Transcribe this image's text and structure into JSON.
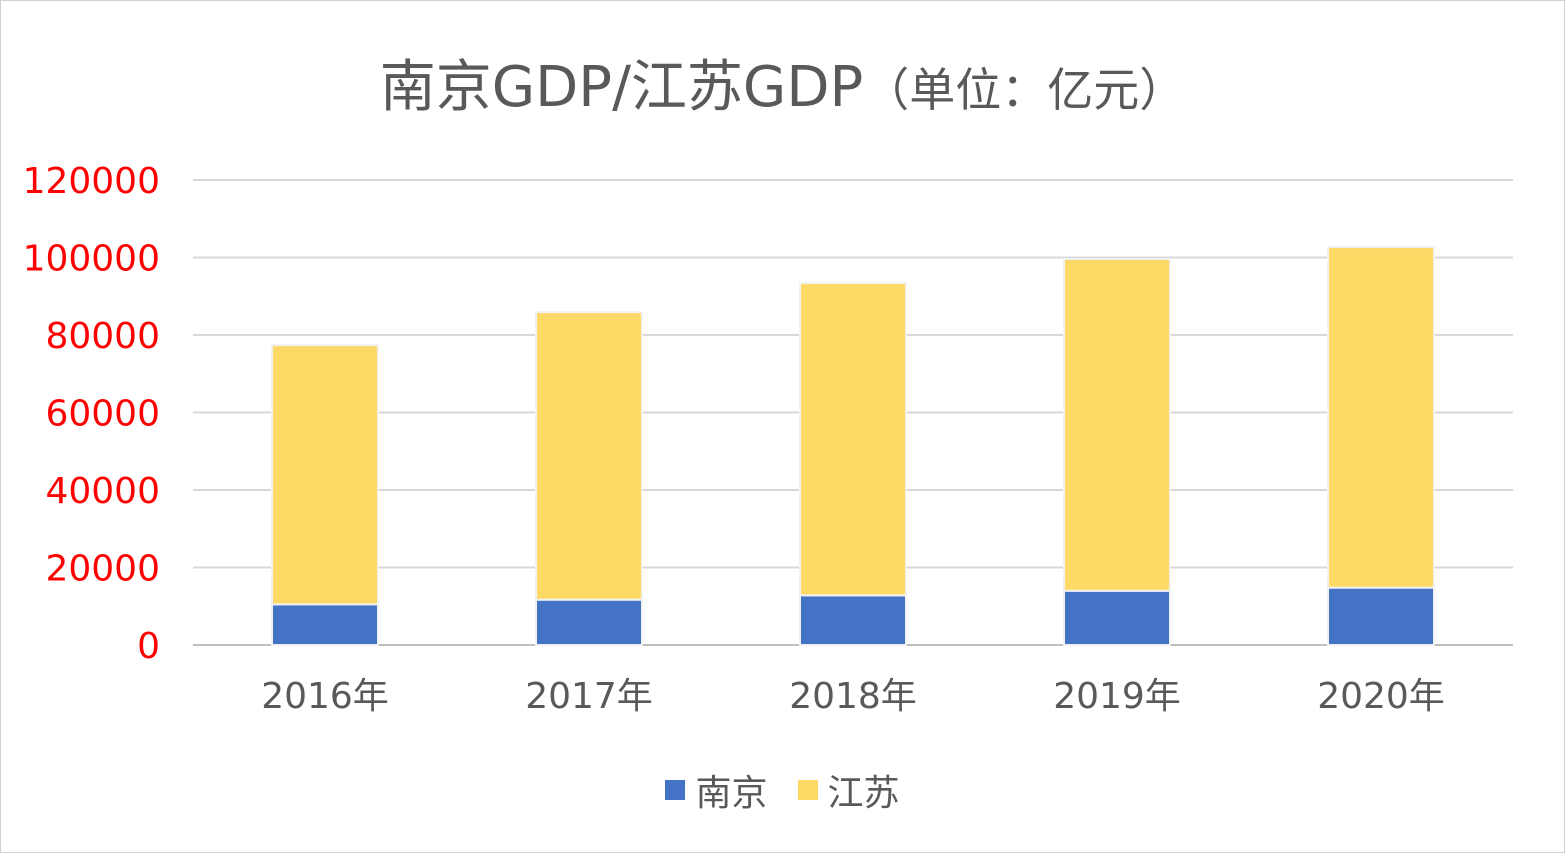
{
  "chart_data": {
    "type": "bar",
    "stacked": true,
    "title": "南京GDP/江苏GDP",
    "title_unit": "（单位：亿元）",
    "categories": [
      "2016年",
      "2017年",
      "2018年",
      "2019年",
      "2020年"
    ],
    "series": [
      {
        "name": "南京",
        "color": "#4472c4",
        "values": [
          10500,
          11700,
          12800,
          14000,
          14800
        ]
      },
      {
        "name": "江苏",
        "color": "#ffd966",
        "values": [
          66900,
          74200,
          80600,
          85600,
          87900
        ]
      }
    ],
    "yticks": [
      "0",
      "20000",
      "40000",
      "60000",
      "80000",
      "100000",
      "120000"
    ],
    "ylim": [
      0,
      120000
    ],
    "ytick_color": "#ff0000",
    "grid": true,
    "legend": "bottom"
  }
}
